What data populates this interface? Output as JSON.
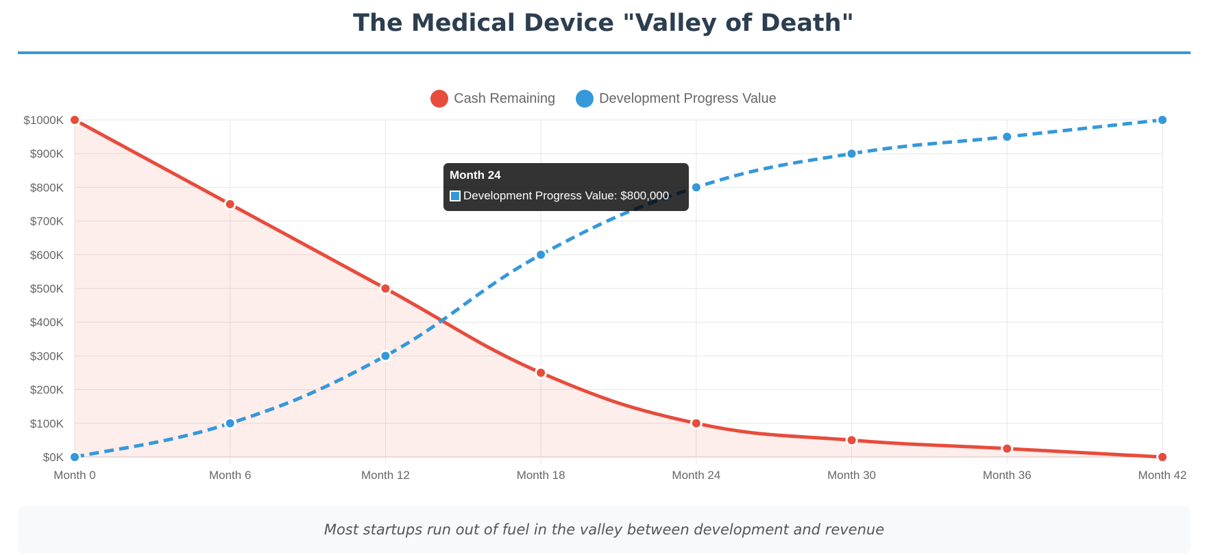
{
  "title": "The Medical Device \"Valley of Death\"",
  "caption": "Most startups run out of fuel in the valley between development and revenue",
  "colors": {
    "title": "#2c3e50",
    "accent_rule": "#3498db",
    "cash": "#e74c3c",
    "progress": "#3498db",
    "cash_fill": "rgba(231,76,60,0.1)"
  },
  "tooltip": {
    "title": "Month 24",
    "label": "Development Progress Value: $800,000"
  },
  "chart_data": {
    "type": "line",
    "categories": [
      "Month 0",
      "Month 6",
      "Month 12",
      "Month 18",
      "Month 24",
      "Month 30",
      "Month 36",
      "Month 42"
    ],
    "series": [
      {
        "name": "Cash Remaining",
        "values": [
          1000000,
          750000,
          500000,
          250000,
          100000,
          50000,
          25000,
          0
        ],
        "color": "#e74c3c",
        "style": "solid",
        "filled": true
      },
      {
        "name": "Development Progress Value",
        "values": [
          0,
          100000,
          300000,
          600000,
          800000,
          900000,
          950000,
          1000000
        ],
        "color": "#3498db",
        "style": "dashed",
        "filled": false
      }
    ],
    "y_ticks": [
      "$0K",
      "$100K",
      "$200K",
      "$300K",
      "$400K",
      "$500K",
      "$600K",
      "$700K",
      "$800K",
      "$900K",
      "$1000K"
    ],
    "ylim": [
      0,
      1000000
    ],
    "grid": true,
    "legend_position": "top"
  }
}
